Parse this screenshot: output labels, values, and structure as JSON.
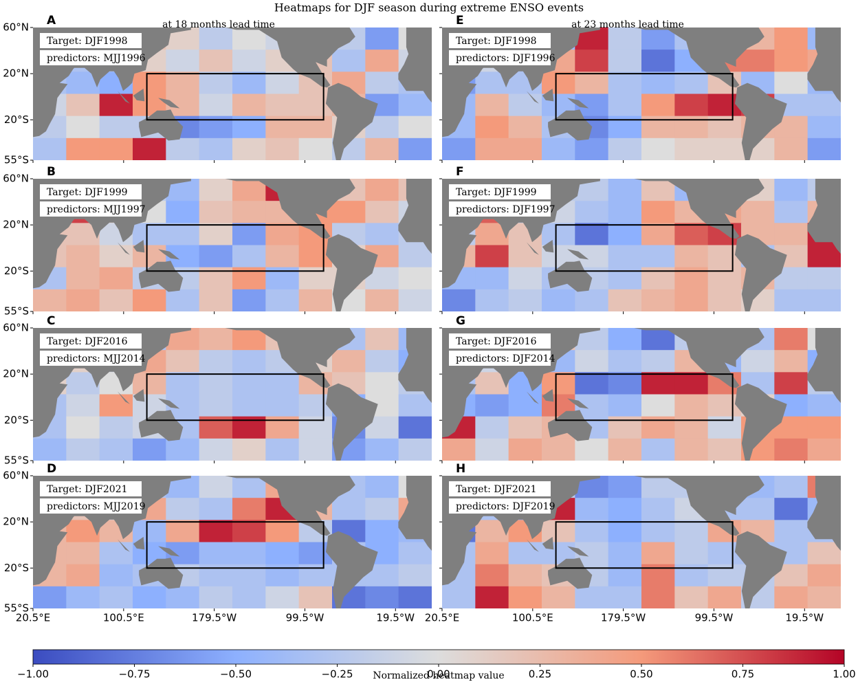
{
  "chart_data": {
    "type": "heatmap",
    "title": "Heatmaps for DJF season during extreme ENSO events",
    "colormap": [
      "#3b4cc0",
      "#8db0fe",
      "#dddddd",
      "#f49a7b",
      "#b40426"
    ],
    "clim": [
      -1,
      1
    ],
    "colorbar_label": "Normalized heatmap value",
    "colorbar_ticks": [
      {
        "value": -1,
        "label": "−1.00"
      },
      {
        "value": -0.75,
        "label": "−0.75"
      },
      {
        "value": -0.5,
        "label": "−0.50"
      },
      {
        "value": -0.25,
        "label": "−0.25"
      },
      {
        "value": 0,
        "label": "0.00"
      },
      {
        "value": 0.25,
        "label": "0.25"
      },
      {
        "value": 0.5,
        "label": "0.50"
      },
      {
        "value": 0.75,
        "label": "0.75"
      },
      {
        "value": 1,
        "label": "1.00"
      }
    ],
    "xlim": [
      20.5,
      372.5
    ],
    "xticks": [
      {
        "value": 20.5,
        "label": "20.5°E"
      },
      {
        "value": 100.5,
        "label": "100.5°E"
      },
      {
        "value": 180.5,
        "label": "179.5°W"
      },
      {
        "value": 260.5,
        "label": "99.5°W"
      },
      {
        "value": 340.5,
        "label": "19.5°W"
      }
    ],
    "ylim": [
      -55,
      60
    ],
    "yticks": [
      {
        "value": 60,
        "label": "60°N"
      },
      {
        "value": 20,
        "label": "20°N"
      },
      {
        "value": -20,
        "label": "20°S"
      },
      {
        "value": -55,
        "label": "55°S"
      }
    ],
    "column_titles": [
      "at 18 months lead time",
      "at 23 months lead time"
    ],
    "panels": [
      {
        "label": "A",
        "target": "Target: DJF1998",
        "target_color": "#d62728",
        "predictors": "predictors: MJJ1996",
        "values": [
          [
            0.1,
            0,
            0,
            0.2,
            0.1,
            -0.2,
            0,
            -0.1,
            0,
            -0.2,
            -0.6,
            0
          ],
          [
            0.1,
            -0.3,
            -0.2,
            0.1,
            -0.1,
            0.2,
            -0.1,
            0.1,
            0.2,
            -0.3,
            0.4,
            -0.1
          ],
          [
            -0.3,
            -0.4,
            -0.5,
            0.5,
            0.3,
            -0.2,
            -0.4,
            -0.1,
            0.2,
            0.4,
            -0.2,
            -0.3
          ],
          [
            -0.1,
            0.2,
            0.9,
            0.5,
            0.3,
            -0.1,
            0.3,
            0.2,
            0.2,
            0.3,
            -0.6,
            -0.4
          ],
          [
            -0.2,
            0,
            -0.2,
            -0.2,
            -0.7,
            -0.6,
            -0.5,
            0.3,
            0.3,
            0.1,
            -0.2,
            0
          ],
          [
            -0.3,
            0.5,
            0.5,
            0.9,
            -0.2,
            -0.3,
            0.1,
            0.2,
            0,
            -0.2,
            0.3,
            -0.6
          ]
        ]
      },
      {
        "label": "B",
        "target": "Target: DJF1999",
        "target_color": "#1f1fbf",
        "predictors": "predictors: MJJ1997",
        "values": [
          [
            0.2,
            0.3,
            0.1,
            -0.2,
            -0.4,
            0.1,
            0.4,
            0.9,
            -0.3,
            0.2,
            0.4,
            0.2
          ],
          [
            0.1,
            0.8,
            0.1,
            0,
            -0.5,
            0.2,
            0.3,
            0.3,
            0.5,
            0.5,
            0.2,
            -0.1
          ],
          [
            0.2,
            0.2,
            -0.1,
            -0.3,
            -0.3,
            0.1,
            -0.6,
            0.4,
            0.5,
            -0.2,
            -0.3,
            -0.2
          ],
          [
            0.2,
            0.3,
            0.1,
            0.3,
            -0.5,
            -0.6,
            -0.3,
            0.3,
            0.5,
            0.1,
            0.4,
            -0.2
          ],
          [
            -0.3,
            0.3,
            0.4,
            -0.2,
            -0.2,
            0.2,
            0.5,
            -0.4,
            0.1,
            0.1,
            -0.1,
            0
          ],
          [
            0.3,
            0.4,
            0.2,
            0.5,
            -0.3,
            0.2,
            -0.6,
            -0.3,
            0.3,
            0,
            0.3,
            -0.1
          ]
        ]
      },
      {
        "label": "C",
        "target": "Target: DJF2016",
        "target_color": "#d62728",
        "predictors": "predictors: MJJ2014",
        "values": [
          [
            0.1,
            0.1,
            0.2,
            -0.3,
            0.4,
            0.3,
            0.5,
            0.2,
            -0.1,
            -0.3,
            0.2,
            -0.4
          ],
          [
            -0.1,
            0.1,
            -0.1,
            0.4,
            0.2,
            -0.2,
            -0.3,
            -0.2,
            0.1,
            0.3,
            -0.2,
            -0.5
          ],
          [
            0.1,
            -0.2,
            0,
            0.3,
            -0.3,
            -0.2,
            -0.3,
            -0.3,
            0.3,
            0.2,
            0,
            -0.2
          ],
          [
            -0.3,
            -0.1,
            0.5,
            -0.1,
            -0.3,
            -0.2,
            -0.3,
            -0.3,
            -0.2,
            -0.5,
            0,
            -0.3
          ],
          [
            -0.3,
            0,
            -0.2,
            -0.1,
            -0.3,
            0.7,
            0.9,
            0.4,
            -0.1,
            -0.7,
            -0.1,
            -0.8
          ],
          [
            -0.4,
            -0.2,
            -0.3,
            -0.6,
            -0.4,
            -0.1,
            0.1,
            -0.3,
            -0.1,
            -0.6,
            -0.4,
            -0.2
          ]
        ]
      },
      {
        "label": "D",
        "target": "Target: DJF2021",
        "target_color": "#1f1fbf",
        "predictors": "predictors: MJJ2019",
        "values": [
          [
            0.1,
            0.3,
            -0.2,
            -0.3,
            -0.4,
            -0.1,
            -0.3,
            0.4,
            -0.2,
            -0.3,
            -0.4,
            0
          ],
          [
            -0.3,
            0.2,
            -0.1,
            0.4,
            -0.2,
            -0.3,
            0.6,
            0.9,
            0.3,
            -0.3,
            -0.2,
            0.4
          ],
          [
            0.3,
            0.5,
            0.3,
            -0.4,
            0.4,
            0.9,
            0.8,
            0.5,
            -0.2,
            -0.8,
            -0.5,
            -0.4
          ],
          [
            0.3,
            0.3,
            -0.3,
            -0.5,
            -0.6,
            -0.4,
            -0.4,
            -0.5,
            -0.6,
            -0.3,
            -0.5,
            -0.3
          ],
          [
            0.3,
            0.4,
            -0.4,
            -0.3,
            -0.2,
            -0.3,
            -0.3,
            -0.4,
            -0.3,
            -0.3,
            -0.3,
            -0.2
          ],
          [
            -0.6,
            -0.4,
            -0.3,
            -0.5,
            -0.4,
            -0.2,
            -0.3,
            -0.1,
            0.2,
            -0.8,
            -0.7,
            -0.8
          ]
        ]
      },
      {
        "label": "E",
        "target": "Target: DJF1998",
        "target_color": "#d62728",
        "predictors": "predictors: DJF1996",
        "values": [
          [
            -0.3,
            -0.2,
            -0.3,
            -0.4,
            0.9,
            -0.2,
            -0.6,
            -0.3,
            0.3,
            0.3,
            0.5,
            -0.4
          ],
          [
            -0.7,
            -0.1,
            -0.3,
            0.4,
            0.8,
            -0.2,
            -0.8,
            -0.5,
            0.6,
            0.6,
            0.5,
            0.4
          ],
          [
            -0.6,
            -0.3,
            -0.3,
            0.5,
            0.3,
            -0.3,
            -0.4,
            -0.3,
            0.2,
            -0.4,
            0,
            -0.4
          ],
          [
            -0.4,
            0.3,
            -0.2,
            -0.4,
            -0.6,
            -0.3,
            0.5,
            0.8,
            0.9,
            0.8,
            -0.3,
            -0.3
          ],
          [
            -0.4,
            0.5,
            0.3,
            -0.3,
            -0.7,
            -0.5,
            0.3,
            0.3,
            0.2,
            0.3,
            0.3,
            -0.4
          ],
          [
            -0.6,
            0.4,
            0.4,
            -0.4,
            -0.6,
            -0.2,
            0,
            0.1,
            0.1,
            0.1,
            0.3,
            -0.6
          ]
        ]
      },
      {
        "label": "F",
        "target": "Target: DJF1999",
        "target_color": "#1f1fbf",
        "predictors": "predictors: DJF1997",
        "values": [
          [
            -0.2,
            0.1,
            -0.3,
            -0.2,
            -0.2,
            -0.4,
            0.2,
            -0.4,
            0.2,
            0.1,
            -0.4,
            -0.2
          ],
          [
            -0.3,
            0.7,
            -0.2,
            -0.1,
            -0.3,
            -0.4,
            0.5,
            0.3,
            0.4,
            0.3,
            -0.3,
            0.3
          ],
          [
            -0.2,
            0.4,
            0.2,
            -0.3,
            -0.8,
            -0.5,
            0.4,
            0.7,
            0.8,
            0.3,
            0.3,
            0.9
          ],
          [
            0.3,
            0.8,
            0.2,
            -0.1,
            -0.1,
            -0.3,
            -0.3,
            0.3,
            0.2,
            -0.3,
            0.2,
            0.9
          ],
          [
            -0.4,
            -0.4,
            -0.1,
            -0.3,
            -0.2,
            -0.3,
            0.2,
            0.4,
            0.2,
            0.3,
            -0.2,
            -0.2
          ],
          [
            -0.7,
            -0.3,
            -0.2,
            -0.4,
            -0.3,
            0.2,
            0.3,
            0.4,
            0.2,
            0.1,
            -0.3,
            -0.3
          ]
        ]
      },
      {
        "label": "G",
        "target": "Target: DJF2016",
        "target_color": "#d62728",
        "predictors": "predictors: DJF2014",
        "values": [
          [
            0.1,
            -0.2,
            -0.1,
            0.2,
            -0.2,
            -0.5,
            -0.8,
            -0.2,
            0.1,
            -0.3,
            0.6,
            0
          ],
          [
            -0.3,
            -0.1,
            -0.4,
            -0.4,
            -0.1,
            -0.3,
            -0.2,
            0.3,
            -0.4,
            -0.1,
            0.3,
            -0.5
          ],
          [
            -0.3,
            0.2,
            -0.5,
            0.5,
            -0.8,
            -0.7,
            0.9,
            0.9,
            0.6,
            -0.3,
            0.8,
            -0.2
          ],
          [
            -0.5,
            -0.6,
            -0.5,
            0.6,
            -0.3,
            -0.4,
            0,
            0.3,
            0.2,
            0.1,
            -0.5,
            -0.4
          ],
          [
            0.9,
            -0.2,
            0.2,
            0.3,
            -0.3,
            0.2,
            0.4,
            0.3,
            -0.1,
            0.5,
            0.5,
            0.5
          ],
          [
            0.4,
            -0.1,
            0.4,
            0.3,
            0,
            0.3,
            -0.3,
            0.3,
            0.2,
            0.5,
            0.6,
            0.4
          ]
        ]
      },
      {
        "label": "H",
        "target": "Target: DJF2021",
        "target_color": "#1f1fbf",
        "predictors": "predictors: DJF2019",
        "values": [
          [
            -0.3,
            -0.1,
            -0.3,
            -0.2,
            -0.7,
            -0.6,
            -0.2,
            -0.2,
            -0.3,
            -0.4,
            -0.3,
            0.6
          ],
          [
            -0.8,
            -0.3,
            -0.5,
            0.9,
            -0.4,
            -0.5,
            -0.3,
            -0.1,
            -0.3,
            -0.3,
            -0.8,
            -0.4
          ],
          [
            -0.8,
            0.3,
            0.5,
            0.2,
            -0.3,
            -0.5,
            -0.3,
            -0.2,
            0.4,
            0.3,
            -0.3,
            -0.3
          ],
          [
            -0.3,
            0.4,
            -0.3,
            -0.3,
            -0.2,
            -0.4,
            0.4,
            -0.2,
            -0.3,
            -0.3,
            -0.3,
            0.2
          ],
          [
            -0.3,
            0.6,
            0.3,
            0.2,
            -0.2,
            -0.4,
            0.6,
            -0.3,
            -0.2,
            -0.2,
            0.2,
            0.4
          ],
          [
            -0.3,
            0.9,
            0.5,
            0.3,
            -0.3,
            -0.3,
            0.6,
            0.2,
            0.4,
            -0.2,
            0.4,
            0.3
          ]
        ]
      }
    ]
  }
}
